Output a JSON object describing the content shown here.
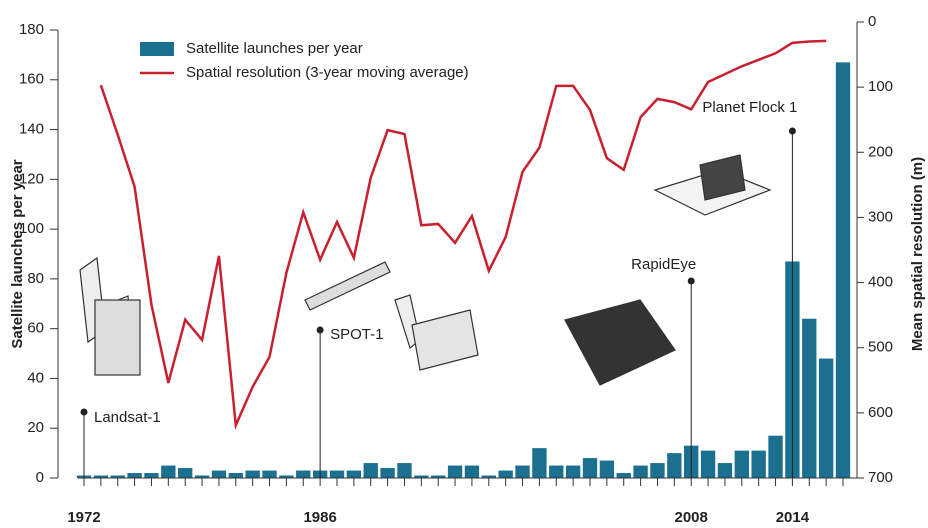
{
  "chart_data": {
    "type": "bar-line",
    "categories": [
      "1972",
      null,
      null,
      null,
      null,
      null,
      null,
      null,
      null,
      null,
      null,
      null,
      null,
      null,
      "1986",
      null,
      null,
      null,
      null,
      null,
      null,
      null,
      null,
      null,
      null,
      null,
      null,
      null,
      null,
      null,
      null,
      null,
      null,
      null,
      null,
      null,
      "2008",
      null,
      null,
      null,
      null,
      null,
      "2014",
      null,
      null,
      null
    ],
    "series": [
      {
        "name": "Satellite launches per year",
        "color": "#1b6f8f",
        "values": [
          1,
          1,
          1,
          2,
          2,
          5,
          4,
          1,
          3,
          2,
          3,
          3,
          1,
          3,
          3,
          3,
          3,
          6,
          4,
          6,
          1,
          1,
          5,
          5,
          1,
          3,
          5,
          12,
          5,
          5,
          8,
          7,
          2,
          5,
          6,
          10,
          13,
          11,
          6,
          11,
          11,
          17,
          87,
          64,
          48,
          167
        ]
      },
      {
        "name": "Spatial resolution (3-year moving average)",
        "color": "#c8202f",
        "axis": "y2",
        "values": [
          null,
          97,
          173,
          253,
          434,
          554,
          457,
          488,
          359,
          619,
          560,
          514,
          385,
          292,
          365,
          307,
          362,
          239,
          166,
          172,
          312,
          310,
          339,
          298,
          382,
          330,
          230,
          193,
          98,
          98,
          135,
          209,
          227,
          146,
          118,
          123,
          134,
          92,
          80,
          68,
          58,
          48,
          32,
          30,
          29,
          null
        ]
      }
    ],
    "ylabel": "Satellite launches per year",
    "y2label": "Mean spatial resolution (m)",
    "ylim": [
      0,
      180
    ],
    "yticks": [
      0,
      20,
      40,
      60,
      80,
      100,
      120,
      140,
      160,
      180
    ],
    "y2lim": [
      700,
      0
    ],
    "y2ticks": [
      0,
      100,
      200,
      300,
      400,
      500,
      600,
      700
    ],
    "annotations": [
      "Landsat-1",
      "SPOT-1",
      "RapidEye",
      "Planet Flock 1"
    ]
  }
}
